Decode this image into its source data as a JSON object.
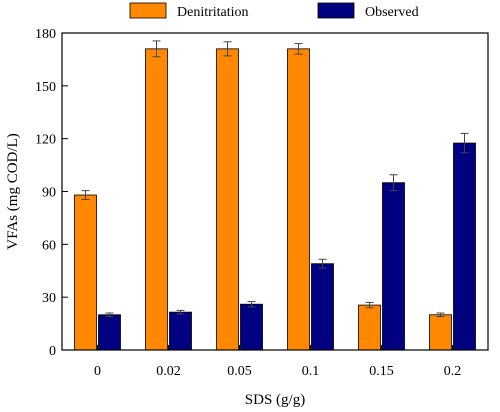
{
  "chart_data": {
    "type": "bar",
    "title": "",
    "xlabel": "SDS (g/g)",
    "ylabel": "VFAs (mg COD/L)",
    "categories": [
      "0",
      "0.02",
      "0.05",
      "0.1",
      "0.15",
      "0.2"
    ],
    "ylim": [
      0,
      180
    ],
    "yticks": [
      0,
      30,
      60,
      90,
      120,
      150,
      180
    ],
    "legend_position": "top",
    "grid": false,
    "series": [
      {
        "name": "Denitritation",
        "color": "#ff8800",
        "values": [
          88,
          171,
          171,
          171,
          25.5,
          20
        ],
        "errors": [
          2.5,
          4.5,
          4,
          3,
          1.5,
          1
        ]
      },
      {
        "name": "Observed",
        "color": "#000080",
        "values": [
          20,
          21.5,
          26,
          49,
          95,
          117.5
        ],
        "errors": [
          1,
          1,
          1.5,
          2.5,
          4.5,
          5.5
        ]
      }
    ]
  }
}
